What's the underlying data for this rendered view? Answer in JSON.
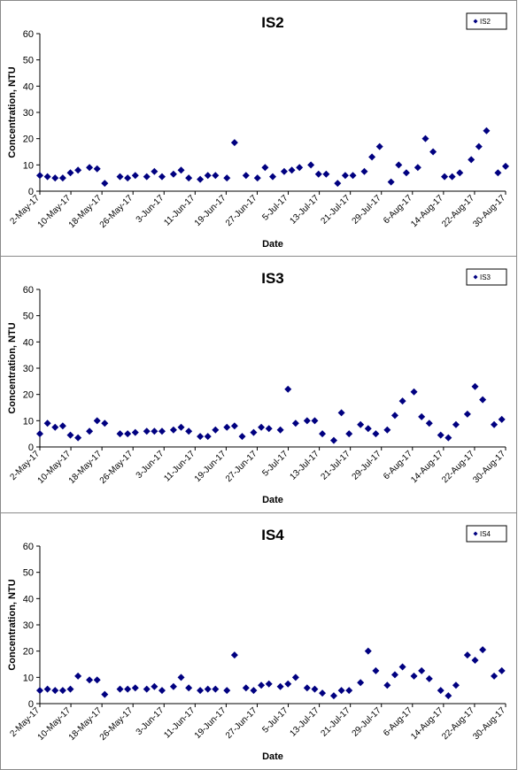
{
  "colors": {
    "marker": "#000080",
    "axis": "#000000",
    "panel_border": "#8a8a8a"
  },
  "chart_data": [
    {
      "type": "scatter",
      "title": "IS2",
      "xlabel": "Date",
      "ylabel": "Concentration, NTU",
      "ylim": [
        0,
        60
      ],
      "yticks": [
        "0",
        "10",
        "20",
        "30",
        "40",
        "50",
        "60"
      ],
      "xlim": [
        "2017-05-02",
        "2017-09-01"
      ],
      "xticks": [
        "2-May-17",
        "10-May-17",
        "18-May-17",
        "26-May-17",
        "3-Jun-17",
        "11-Jun-17",
        "19-Jun-17",
        "27-Jun-17",
        "5-Jul-17",
        "13-Jul-17",
        "21-Jul-17",
        "29-Jul-17",
        "6-Aug-17",
        "14-Aug-17",
        "22-Aug-17",
        "30-Aug-17"
      ],
      "grid": false,
      "legend": "top-right",
      "series": [
        {
          "name": "IS2",
          "marker": "diamond",
          "x": [
            "2017-05-02",
            "2017-05-04",
            "2017-05-06",
            "2017-05-08",
            "2017-05-10",
            "2017-05-12",
            "2017-05-15",
            "2017-05-17",
            "2017-05-19",
            "2017-05-23",
            "2017-05-25",
            "2017-05-27",
            "2017-05-30",
            "2017-06-01",
            "2017-06-03",
            "2017-06-06",
            "2017-06-08",
            "2017-06-10",
            "2017-06-13",
            "2017-06-15",
            "2017-06-17",
            "2017-06-20",
            "2017-06-22",
            "2017-06-25",
            "2017-06-28",
            "2017-06-30",
            "2017-07-02",
            "2017-07-05",
            "2017-07-07",
            "2017-07-09",
            "2017-07-12",
            "2017-07-14",
            "2017-07-16",
            "2017-07-19",
            "2017-07-21",
            "2017-07-23",
            "2017-07-26",
            "2017-07-28",
            "2017-07-30",
            "2017-08-02",
            "2017-08-04",
            "2017-08-06",
            "2017-08-09",
            "2017-08-11",
            "2017-08-13",
            "2017-08-16",
            "2017-08-18",
            "2017-08-20",
            "2017-08-23",
            "2017-08-25",
            "2017-08-27",
            "2017-08-30",
            "2017-09-01"
          ],
          "y": [
            6,
            5.5,
            5,
            5,
            7,
            8,
            9,
            8.5,
            3,
            5.5,
            5,
            6,
            5.5,
            7.5,
            5.5,
            6.5,
            8,
            5,
            4.5,
            6,
            6,
            5,
            18.5,
            6,
            5,
            9,
            5.5,
            7.5,
            8,
            9,
            10,
            6.5,
            6.5,
            3,
            6,
            6,
            7.5,
            13,
            17,
            3.5,
            10,
            7,
            9,
            20,
            15,
            5.5,
            5.5,
            7,
            12,
            17,
            23,
            7,
            9.5
          ]
        }
      ]
    },
    {
      "type": "scatter",
      "title": "IS3",
      "xlabel": "Date",
      "ylabel": "Concentration, NTU",
      "ylim": [
        0,
        60
      ],
      "yticks": [
        "0",
        "10",
        "20",
        "30",
        "40",
        "50",
        "60"
      ],
      "xlim": [
        "2017-05-02",
        "2017-09-01"
      ],
      "xticks": [
        "2-May-17",
        "10-May-17",
        "18-May-17",
        "26-May-17",
        "3-Jun-17",
        "11-Jun-17",
        "19-Jun-17",
        "27-Jun-17",
        "5-Jul-17",
        "13-Jul-17",
        "21-Jul-17",
        "29-Jul-17",
        "6-Aug-17",
        "14-Aug-17",
        "22-Aug-17",
        "30-Aug-17"
      ],
      "grid": false,
      "legend": "top-right",
      "series": [
        {
          "name": "IS3",
          "marker": "diamond",
          "x": [
            "2017-05-02",
            "2017-05-04",
            "2017-05-06",
            "2017-05-08",
            "2017-05-10",
            "2017-05-12",
            "2017-05-15",
            "2017-05-17",
            "2017-05-19",
            "2017-05-23",
            "2017-05-25",
            "2017-05-27",
            "2017-05-30",
            "2017-06-01",
            "2017-06-03",
            "2017-06-06",
            "2017-06-08",
            "2017-06-10",
            "2017-06-13",
            "2017-06-15",
            "2017-06-17",
            "2017-06-20",
            "2017-06-22",
            "2017-06-24",
            "2017-06-27",
            "2017-06-29",
            "2017-07-01",
            "2017-07-04",
            "2017-07-06",
            "2017-07-08",
            "2017-07-11",
            "2017-07-13",
            "2017-07-15",
            "2017-07-18",
            "2017-07-20",
            "2017-07-22",
            "2017-07-25",
            "2017-07-27",
            "2017-07-29",
            "2017-08-01",
            "2017-08-03",
            "2017-08-05",
            "2017-08-08",
            "2017-08-10",
            "2017-08-12",
            "2017-08-15",
            "2017-08-17",
            "2017-08-19",
            "2017-08-22",
            "2017-08-24",
            "2017-08-26",
            "2017-08-29",
            "2017-08-31"
          ],
          "y": [
            5,
            9,
            7.5,
            8,
            4.5,
            3.5,
            6,
            10,
            9,
            5,
            5,
            5.5,
            6,
            6,
            6,
            6.5,
            7.5,
            6,
            4,
            4,
            6.5,
            7.5,
            8,
            4,
            5.5,
            7.5,
            7,
            6.5,
            22,
            9,
            10,
            10,
            5,
            2.5,
            13,
            5,
            8.5,
            7,
            5,
            6.5,
            12,
            17.5,
            21,
            11.5,
            9,
            4.5,
            3.5,
            8.5,
            12.5,
            23,
            18,
            8.5,
            10.5
          ]
        }
      ]
    },
    {
      "type": "scatter",
      "title": "IS4",
      "xlabel": "Date",
      "ylabel": "Concentration, NTU",
      "ylim": [
        0,
        60
      ],
      "yticks": [
        "0",
        "10",
        "20",
        "30",
        "40",
        "50",
        "60"
      ],
      "xlim": [
        "2017-05-02",
        "2017-09-01"
      ],
      "xticks": [
        "2-May-17",
        "10-May-17",
        "18-May-17",
        "26-May-17",
        "3-Jun-17",
        "11-Jun-17",
        "19-Jun-17",
        "27-Jun-17",
        "5-Jul-17",
        "13-Jul-17",
        "21-Jul-17",
        "29-Jul-17",
        "6-Aug-17",
        "14-Aug-17",
        "22-Aug-17",
        "30-Aug-17"
      ],
      "grid": false,
      "legend": "top-right",
      "series": [
        {
          "name": "IS4",
          "marker": "diamond",
          "x": [
            "2017-05-02",
            "2017-05-04",
            "2017-05-06",
            "2017-05-08",
            "2017-05-10",
            "2017-05-12",
            "2017-05-15",
            "2017-05-17",
            "2017-05-19",
            "2017-05-23",
            "2017-05-25",
            "2017-05-27",
            "2017-05-30",
            "2017-06-01",
            "2017-06-03",
            "2017-06-06",
            "2017-06-08",
            "2017-06-10",
            "2017-06-13",
            "2017-06-15",
            "2017-06-17",
            "2017-06-20",
            "2017-06-22",
            "2017-06-25",
            "2017-06-27",
            "2017-06-29",
            "2017-07-01",
            "2017-07-04",
            "2017-07-06",
            "2017-07-08",
            "2017-07-11",
            "2017-07-13",
            "2017-07-15",
            "2017-07-18",
            "2017-07-20",
            "2017-07-22",
            "2017-07-25",
            "2017-07-27",
            "2017-07-29",
            "2017-08-01",
            "2017-08-03",
            "2017-08-05",
            "2017-08-08",
            "2017-08-10",
            "2017-08-12",
            "2017-08-15",
            "2017-08-17",
            "2017-08-19",
            "2017-08-22",
            "2017-08-24",
            "2017-08-26",
            "2017-08-29",
            "2017-08-31"
          ],
          "y": [
            5,
            5.5,
            5,
            5,
            5.5,
            10.5,
            9,
            9,
            3.5,
            5.5,
            5.5,
            6,
            5.5,
            6.5,
            5,
            6.5,
            10,
            6,
            5,
            5.5,
            5.5,
            5,
            18.5,
            6,
            5,
            7,
            7.5,
            6.5,
            7.5,
            10,
            6,
            5.5,
            4,
            3,
            5,
            5,
            8,
            20,
            12.5,
            7,
            11,
            14,
            10.5,
            12.5,
            9.5,
            5,
            3,
            7,
            18.5,
            16.5,
            20.5,
            10.5,
            12.5
          ]
        }
      ]
    }
  ]
}
